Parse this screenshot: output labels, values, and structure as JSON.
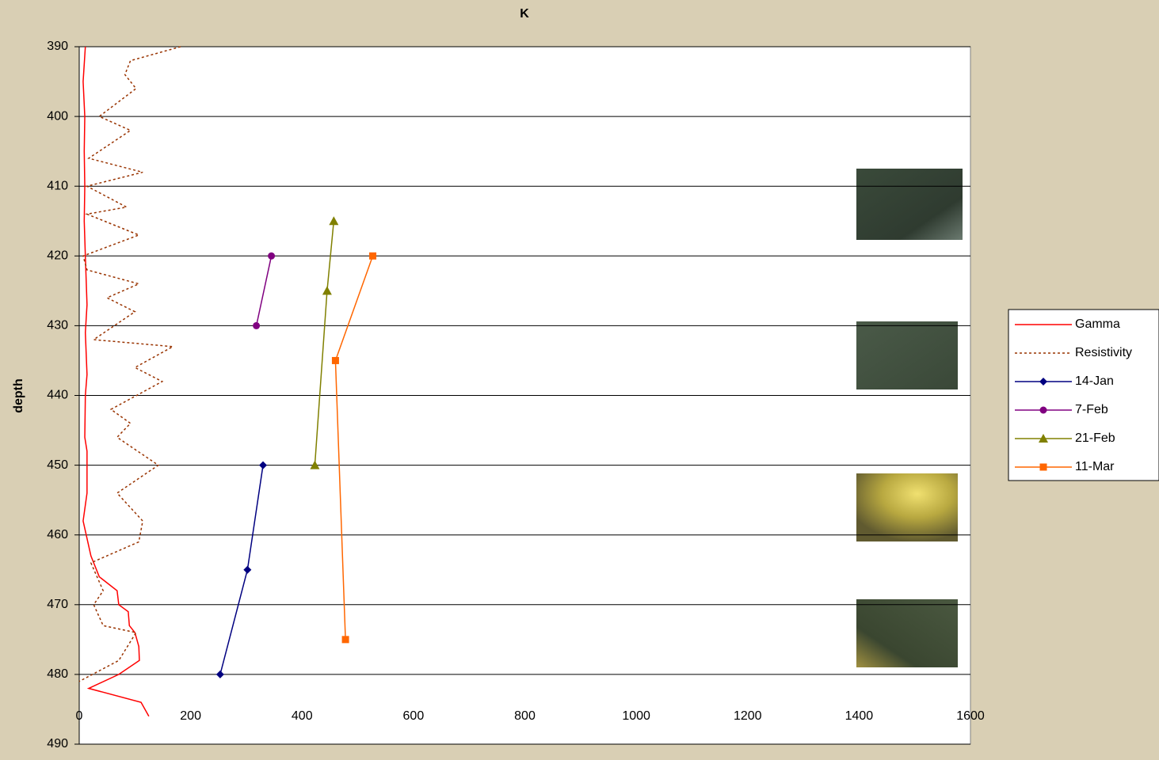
{
  "chart_data": {
    "type": "line",
    "title": "K",
    "y_label": "depth",
    "xlim": [
      0,
      1600
    ],
    "xticks": [
      0,
      200,
      400,
      600,
      800,
      1000,
      1200,
      1400,
      1600
    ],
    "ylim": [
      390,
      490
    ],
    "yticks": [
      390,
      400,
      410,
      420,
      430,
      440,
      450,
      460,
      470,
      480,
      490
    ],
    "y_inverted": true,
    "grid": true,
    "series": [
      {
        "name": "Gamma",
        "color": "#ff0000",
        "dash": false,
        "marker": null,
        "x": [
          11,
          7,
          10,
          9,
          10,
          9,
          11,
          14,
          11,
          14,
          11,
          10,
          14,
          14,
          7,
          21,
          36,
          68,
          71,
          88,
          90,
          100,
          107,
          108,
          71,
          17,
          111,
          125
        ],
        "values": [
          390,
          395,
          400,
          405,
          410,
          415,
          420,
          427,
          431,
          437,
          440,
          446,
          448,
          454,
          458,
          463,
          466,
          468,
          470,
          471,
          473,
          474,
          476,
          478,
          480,
          482,
          484,
          486
        ]
      },
      {
        "name": "Resistivity",
        "color": "#993300",
        "dash": true,
        "marker": null,
        "x": [
          182,
          92,
          82,
          102,
          36,
          92,
          17,
          114,
          14,
          85,
          14,
          107,
          7,
          14,
          107,
          50,
          100,
          26,
          168,
          100,
          149,
          57,
          92,
          68,
          142,
          68,
          114,
          107,
          21,
          43,
          26,
          43,
          102,
          71,
          0
        ],
        "values": [
          390,
          392,
          394,
          396,
          400,
          402,
          406,
          408,
          410,
          413,
          414,
          417,
          420,
          422,
          424,
          426,
          428,
          432,
          433,
          436,
          438,
          442,
          444,
          446,
          450,
          454,
          458,
          461,
          464,
          468,
          470,
          473,
          474,
          478,
          481
        ]
      },
      {
        "name": "14-Jan",
        "color": "#000080",
        "dash": false,
        "marker": "diamond",
        "x": [
          330,
          302,
          253
        ],
        "values": [
          450,
          465,
          480
        ]
      },
      {
        "name": "7-Feb",
        "color": "#800080",
        "dash": false,
        "marker": "circle",
        "x": [
          345,
          318
        ],
        "values": [
          420,
          430
        ]
      },
      {
        "name": "21-Feb",
        "color": "#808000",
        "dash": false,
        "marker": "triangle",
        "x": [
          457,
          445,
          423
        ],
        "values": [
          415,
          425,
          450
        ]
      },
      {
        "name": "11-Mar",
        "color": "#ff6600",
        "dash": false,
        "marker": "square",
        "x": [
          527,
          460,
          478
        ],
        "values": [
          420,
          435,
          475
        ]
      }
    ]
  }
}
